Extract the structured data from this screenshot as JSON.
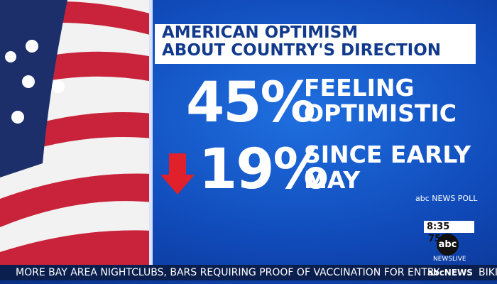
{
  "graphic": {
    "title_lines": [
      "AMERICAN OPTIMISM",
      "ABOUT COUNTRY'S DIRECTION"
    ],
    "stats": [
      {
        "figure": "45%",
        "caption_lines": [
          "FEELING",
          "OPTIMISTIC"
        ]
      },
      {
        "figure": "19%",
        "caption_lines": [
          "SINCE EARLY",
          "MAY"
        ]
      }
    ],
    "source": "abc NEWS POLL"
  },
  "bug": {
    "time": "8:35",
    "temperature": "75°",
    "logo": "abc",
    "network": "NEWSLIVE"
  },
  "ticker": {
    "headline": "MORE BAY AREA NIGHTCLUBS, BARS REQUIRING PROOF OF VACCINATION FOR ENTRY",
    "brand": "abcNEWS",
    "next": "BIKI"
  }
}
